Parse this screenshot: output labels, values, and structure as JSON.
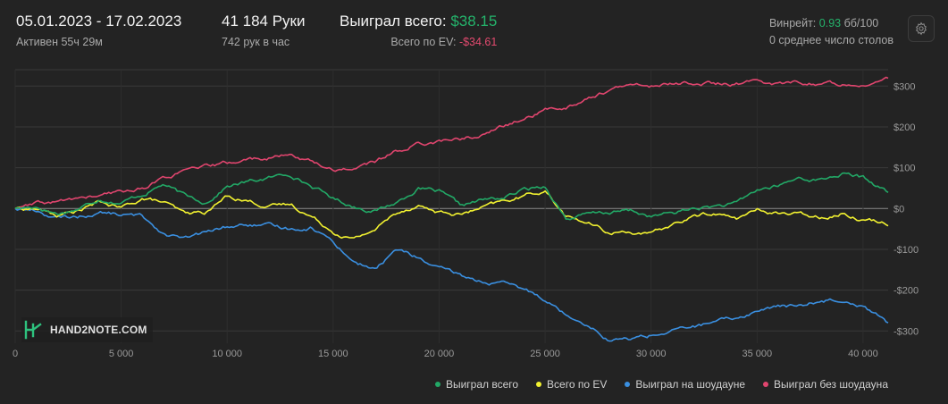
{
  "header": {
    "date_range": "05.01.2023 - 17.02.2023",
    "active": "Активен 55ч 29м",
    "hands": "41 184 Руки",
    "hands_per_hour": "742 рук в час",
    "won_total_label": "Выиграл всего:",
    "won_total_value": "$38.15",
    "ev_label": "Всего по EV:",
    "ev_value": "-$34.61",
    "winrate_label": "Винрейт:",
    "winrate_value": "0.93",
    "winrate_unit": "бб/100",
    "avg_tables": "0 среднее число столов"
  },
  "logo": {
    "text": "HAND2NOTE.COM"
  },
  "colors": {
    "background": "#232323",
    "grid": "#3a3a3a",
    "zero_line": "#8a8a8a",
    "won_total": "#22a866",
    "ev": "#f2f230",
    "showdown": "#3a8fe0",
    "non_showdown": "#e0456e"
  },
  "chart_data": {
    "type": "line",
    "xlim": [
      0,
      41184
    ],
    "ylim": [
      -330,
      340
    ],
    "x_ticks": [
      0,
      5000,
      10000,
      15000,
      20000,
      25000,
      30000,
      35000,
      40000
    ],
    "x_tick_labels": [
      "0",
      "5 000",
      "10 000",
      "15 000",
      "20 000",
      "25 000",
      "30 000",
      "35 000",
      "40 000"
    ],
    "y_ticks": [
      300,
      200,
      100,
      0,
      -100,
      -200,
      -300
    ],
    "y_tick_labels": [
      "$300",
      "$200",
      "$100",
      "$0",
      "-$100",
      "-$200",
      "-$300"
    ],
    "grid": true,
    "legend_position": "bottom-right",
    "x": [
      0,
      1000,
      2000,
      3000,
      4000,
      5000,
      6000,
      7000,
      8000,
      9000,
      10000,
      11000,
      12000,
      13000,
      14000,
      15000,
      16000,
      17000,
      18000,
      19000,
      20000,
      21000,
      22000,
      23000,
      24000,
      25000,
      26000,
      27000,
      28000,
      29000,
      30000,
      31000,
      32000,
      33000,
      34000,
      35000,
      36000,
      37000,
      38000,
      39000,
      40000,
      41184
    ],
    "series": [
      {
        "name": "Выиграл всего",
        "color": "#22a866",
        "values": [
          0,
          5,
          -12,
          0,
          25,
          15,
          35,
          60,
          30,
          15,
          55,
          65,
          75,
          85,
          55,
          25,
          5,
          -5,
          15,
          50,
          40,
          5,
          20,
          25,
          45,
          55,
          -25,
          -15,
          -10,
          -5,
          -20,
          -12,
          0,
          5,
          10,
          45,
          55,
          75,
          70,
          85,
          75,
          40
        ]
      },
      {
        "name": "Всего по EV",
        "color": "#f2f230",
        "values": [
          0,
          0,
          -18,
          -5,
          15,
          0,
          25,
          15,
          -15,
          -10,
          30,
          20,
          5,
          10,
          -20,
          -55,
          -75,
          -50,
          -10,
          10,
          -10,
          -15,
          0,
          15,
          30,
          45,
          -20,
          -35,
          -60,
          -55,
          -65,
          -40,
          -20,
          -10,
          -25,
          -5,
          -10,
          -15,
          -20,
          -10,
          -25,
          -35
        ]
      },
      {
        "name": "Выиграл на шоудауне",
        "color": "#3a8fe0",
        "values": [
          0,
          -5,
          -25,
          -20,
          -10,
          -15,
          -20,
          -60,
          -75,
          -60,
          -45,
          -40,
          -45,
          -50,
          -45,
          -80,
          -130,
          -150,
          -100,
          -120,
          -150,
          -165,
          -180,
          -185,
          -200,
          -220,
          -260,
          -280,
          -320,
          -320,
          -310,
          -300,
          -290,
          -280,
          -270,
          -250,
          -240,
          -240,
          -225,
          -220,
          -235,
          -280
        ]
      },
      {
        "name": "Выиграл без шоудауна",
        "color": "#e0456e",
        "values": [
          0,
          10,
          15,
          25,
          30,
          40,
          50,
          75,
          90,
          100,
          110,
          120,
          125,
          130,
          115,
          95,
          100,
          115,
          140,
          160,
          165,
          170,
          180,
          200,
          220,
          240,
          250,
          270,
          290,
          300,
          300,
          305,
          310,
          305,
          305,
          310,
          305,
          310,
          305,
          305,
          310,
          315
        ]
      }
    ]
  }
}
